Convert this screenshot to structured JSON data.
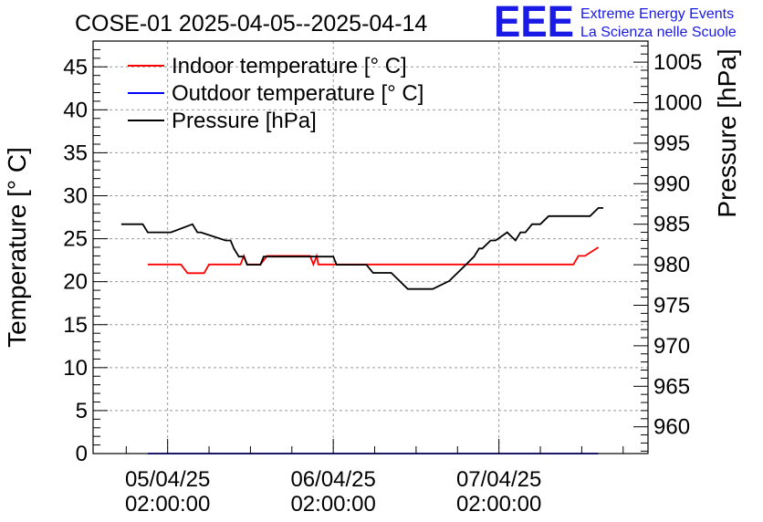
{
  "chart_data": {
    "type": "line",
    "title": "COSE-01 2025-04-05--2025-04-14",
    "ylabel": "Temperature [° C]",
    "y2label": "Pressure [hPa]",
    "ylim": [
      0,
      48
    ],
    "y2lim": [
      956.7,
      1007.6
    ],
    "xlim": [
      -0.45,
      2.9
    ],
    "xunit": "days since 05/04/25 02:00:00",
    "grid": true,
    "legend_position": "top-left",
    "y_ticks": [
      0,
      5,
      10,
      15,
      20,
      25,
      30,
      35,
      40,
      45
    ],
    "y2_ticks": [
      960,
      965,
      970,
      975,
      980,
      985,
      990,
      995,
      1000,
      1005
    ],
    "x_ticks": [
      {
        "x": 0,
        "line1": "05/04/25",
        "line2": "02:00:00"
      },
      {
        "x": 1,
        "line1": "06/04/25",
        "line2": "02:00:00"
      },
      {
        "x": 2,
        "line1": "07/04/25",
        "line2": "02:00:00"
      }
    ],
    "series": [
      {
        "name": "Indoor temperature [° C]",
        "color": "#ff0000",
        "axis": "left",
        "x": [
          -0.12,
          0.08,
          0.12,
          0.22,
          0.25,
          0.44,
          0.46,
          0.48,
          0.56,
          0.6,
          0.86,
          0.88,
          0.9,
          0.91,
          1.05,
          1.08,
          1.6,
          2.0,
          2.45,
          2.48,
          2.52,
          2.6
        ],
        "y": [
          22,
          22,
          21,
          21,
          22,
          22,
          23,
          22,
          22,
          23,
          23,
          22,
          23,
          22,
          22,
          22,
          22,
          22,
          22,
          23,
          23,
          24
        ]
      },
      {
        "name": "Outdoor temperature [° C]",
        "color": "#0000ff",
        "axis": "left",
        "x": [
          -0.12,
          2.6
        ],
        "y": [
          0,
          0
        ]
      },
      {
        "name": "Pressure [hPa]",
        "color": "#000000",
        "axis": "right",
        "x": [
          -0.28,
          -0.15,
          -0.12,
          0.02,
          0.15,
          0.18,
          0.2,
          0.35,
          0.38,
          0.4,
          0.43,
          0.46,
          0.48,
          0.53,
          0.56,
          0.58,
          0.62,
          0.72,
          1.0,
          1.02,
          1.2,
          1.24,
          1.35,
          1.4,
          1.45,
          1.52,
          1.6,
          1.7,
          1.75,
          1.8,
          1.85,
          1.88,
          1.9,
          1.95,
          1.98,
          2.05,
          2.1,
          2.13,
          2.16,
          2.2,
          2.25,
          2.3,
          2.32,
          2.4,
          2.5,
          2.55,
          2.6,
          2.63
        ],
        "y": [
          985,
          985,
          984,
          984,
          985,
          984,
          984,
          983,
          983,
          982,
          981,
          981,
          980,
          980,
          980,
          981,
          981,
          981,
          981,
          980,
          980,
          979,
          979,
          978,
          977,
          977,
          977,
          978,
          979,
          980,
          981,
          982,
          982,
          983,
          983,
          984,
          983,
          984,
          984,
          985,
          985,
          986,
          986,
          986,
          986,
          986,
          987,
          987
        ]
      }
    ]
  },
  "branding": {
    "logo_text": "EEE",
    "line1": "Extreme Energy Events",
    "line2": "La Scienza nelle Scuole"
  }
}
